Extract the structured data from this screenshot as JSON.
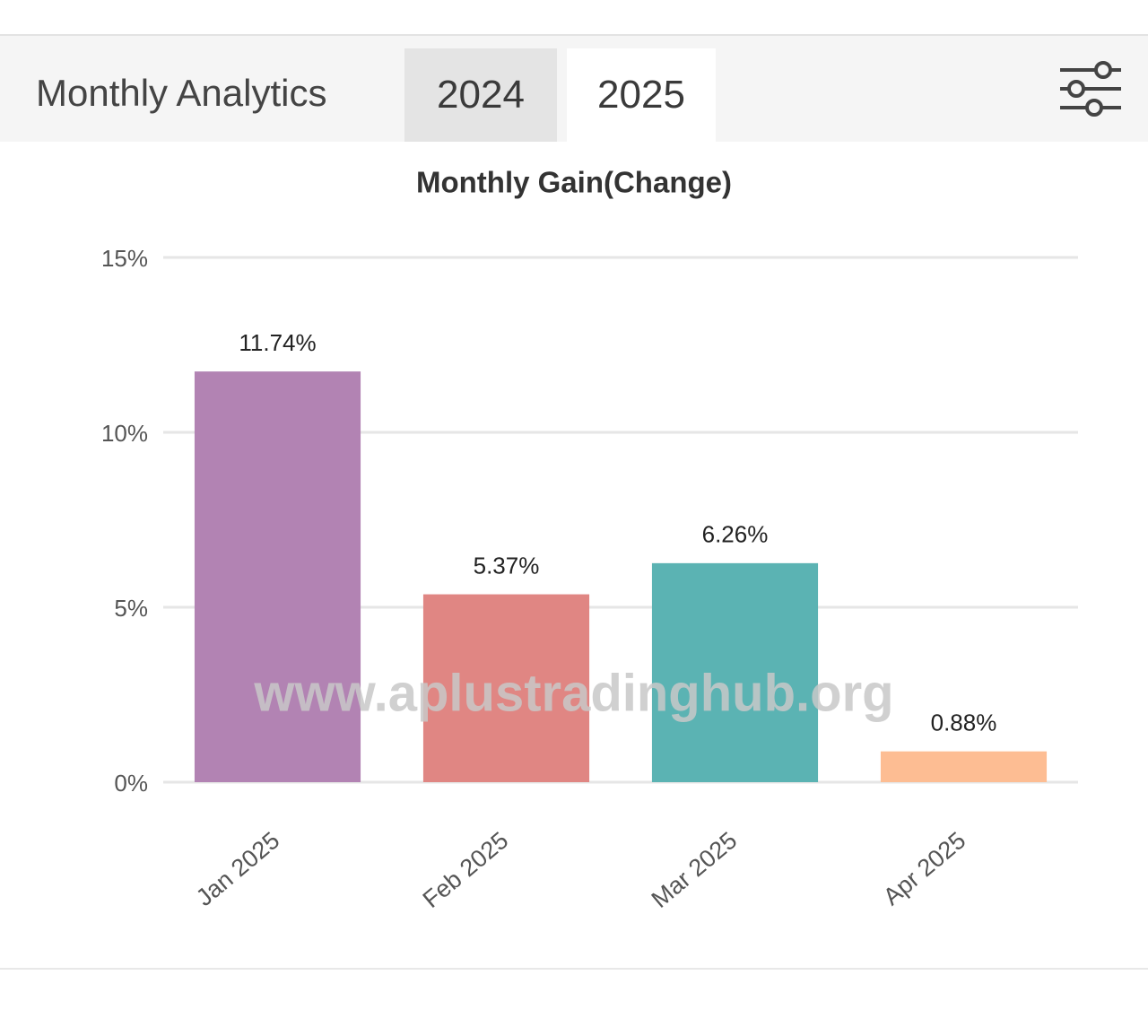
{
  "header": {
    "title": "Monthly Analytics",
    "tabs": [
      "2024",
      "2025"
    ]
  },
  "chart_data": {
    "type": "bar",
    "title": "Monthly Gain(Change)",
    "categories": [
      "Jan 2025",
      "Feb 2025",
      "Mar 2025",
      "Apr 2025"
    ],
    "values": [
      11.74,
      5.37,
      6.26,
      0.88
    ],
    "value_labels": [
      "11.74%",
      "5.37%",
      "6.26%",
      "0.88%"
    ],
    "colors": [
      "#b283b3",
      "#e08683",
      "#5bb3b3",
      "#fdbd93"
    ],
    "ylim": [
      0,
      15
    ],
    "yticks": [
      {
        "value": 0,
        "label": "0%"
      },
      {
        "value": 5,
        "label": "5%"
      },
      {
        "value": 10,
        "label": "10%"
      },
      {
        "value": 15,
        "label": "15%"
      }
    ],
    "grid": true,
    "watermark": "www.aplustradinghub.org"
  }
}
